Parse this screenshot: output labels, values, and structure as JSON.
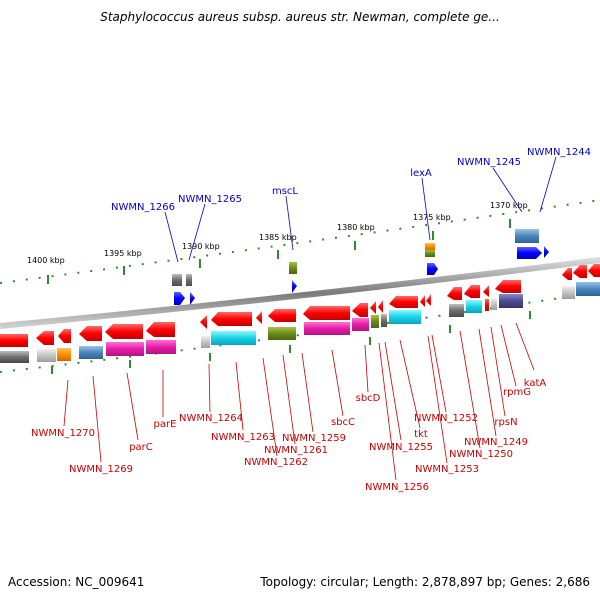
{
  "title": "Staphylococcus aureus subsp. aureus str. Newman, complete ge...",
  "footer": {
    "accession": "Accession: NC_009641",
    "topology": "Topology: circular; Length: 2,878,897 bp; Genes: 2,686"
  },
  "scale_labels": [
    "1400 kbp",
    "1395 kbp",
    "1390 kbp",
    "1385 kbp",
    "1380 kbp",
    "1375 kbp",
    "1370 kbp"
  ],
  "forward_gene_labels": [
    "NWMN_1266",
    "NWMN_1265",
    "mscL",
    "lexA",
    "NWMN_1245",
    "NWMN_1244"
  ],
  "reverse_gene_labels": [
    "NWMN_1270",
    "NWMN_1269",
    "parC",
    "parE",
    "NWMN_1264",
    "NWMN_1263",
    "NWMN_1262",
    "NWMN_1261",
    "NWMN_1259",
    "sbcC",
    "sbcD",
    "NWMN_1256",
    "NWMN_1255",
    "tkt",
    "NWMN_1253",
    "NWMN_1252",
    "NWMN_1250",
    "NWMN_1249",
    "rpsN",
    "rpmG",
    "katA"
  ],
  "colors": {
    "forward_label": "#0000cc",
    "reverse_label": "#cc0000",
    "tick": "#2e8b2e",
    "backbone": "#8a8a8a"
  }
}
